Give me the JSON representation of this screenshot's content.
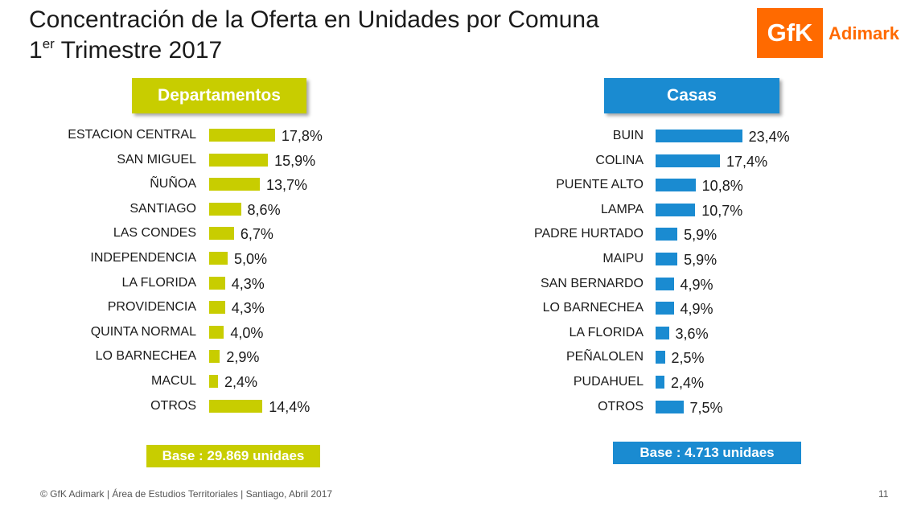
{
  "title": {
    "line1": "Concentración de la Oferta en Unidades por Comuna",
    "line2_prefix": "1",
    "line2_sup": "er",
    "line2_rest": " Trimestre 2017"
  },
  "logo": {
    "mark": "GfK",
    "name": "Adimark"
  },
  "colors": {
    "departamentos": "#c8cd00",
    "casas": "#1a8bd1",
    "logo": "#ff6a00"
  },
  "chart_data": [
    {
      "type": "bar",
      "orientation": "horizontal",
      "title": "Departamentos",
      "categories": [
        "ESTACION CENTRAL",
        "SAN MIGUEL",
        "ÑUÑOA",
        "SANTIAGO",
        "LAS CONDES",
        "INDEPENDENCIA",
        "LA FLORIDA",
        "PROVIDENCIA",
        "QUINTA NORMAL",
        "LO BARNECHEA",
        "MACUL",
        "OTROS"
      ],
      "values": [
        17.8,
        15.9,
        13.7,
        8.6,
        6.7,
        5.0,
        4.3,
        4.3,
        4.0,
        2.9,
        2.4,
        14.4
      ],
      "value_labels": [
        "17,8%",
        "15,9%",
        "13,7%",
        "8,6%",
        "6,7%",
        "5,0%",
        "4,3%",
        "4,3%",
        "4,0%",
        "2,9%",
        "2,4%",
        "14,4%"
      ],
      "base": "Base : 29.869 unidaes"
    },
    {
      "type": "bar",
      "orientation": "horizontal",
      "title": "Casas",
      "categories": [
        "BUIN",
        "COLINA",
        "PUENTE ALTO",
        "LAMPA",
        "PADRE HURTADO",
        "MAIPU",
        "SAN BERNARDO",
        "LO BARNECHEA",
        "LA FLORIDA",
        "PEÑALOLEN",
        "PUDAHUEL",
        "OTROS"
      ],
      "values": [
        23.4,
        17.4,
        10.8,
        10.7,
        5.9,
        5.9,
        4.9,
        4.9,
        3.6,
        2.5,
        2.4,
        7.5
      ],
      "value_labels": [
        "23,4%",
        "17,4%",
        "10,8%",
        "10,7%",
        "5,9%",
        "5,9%",
        "4,9%",
        "4,9%",
        "3,6%",
        "2,5%",
        "2,4%",
        "7,5%"
      ],
      "base": "Base : 4.713 unidaes"
    }
  ],
  "footer": {
    "text": "© GfK  Adimark |  Área de Estudios Territoriales | Santiago, Abril 2017",
    "page": "11"
  }
}
